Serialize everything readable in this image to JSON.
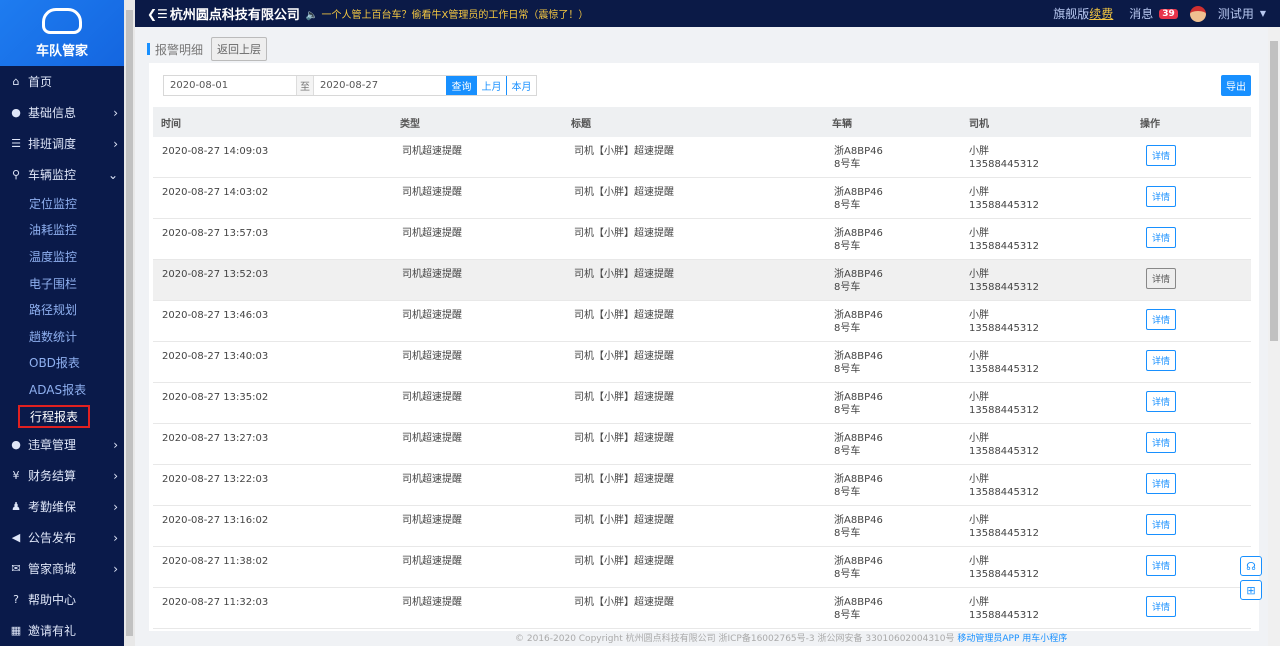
{
  "sidebar": {
    "brand": "车队管家",
    "items": [
      {
        "label": "首页",
        "icon": "home-icon",
        "glyph": "⌂"
      },
      {
        "label": "基础信息",
        "icon": "info-icon",
        "glyph": "●",
        "chev": true
      },
      {
        "label": "排班调度",
        "icon": "sliders-icon",
        "glyph": "☰",
        "chev": true
      },
      {
        "label": "车辆监控",
        "icon": "location-icon",
        "glyph": "⚲",
        "chev": true,
        "open": true
      }
    ],
    "sub": [
      "定位监控",
      "油耗监控",
      "温度监控",
      "电子围栏",
      "路径规划",
      "趟数统计",
      "OBD报表",
      "ADAS报表",
      "行程报表"
    ],
    "active_sub": "行程报表",
    "items2": [
      {
        "label": "违章管理",
        "icon": "violation-icon",
        "glyph": "●",
        "chev": true
      },
      {
        "label": "财务结算",
        "icon": "finance-icon",
        "glyph": "¥",
        "chev": true
      },
      {
        "label": "考勤维保",
        "icon": "attendance-icon",
        "glyph": "♟",
        "chev": true
      },
      {
        "label": "公告发布",
        "icon": "announce-icon",
        "glyph": "◀",
        "chev": true
      },
      {
        "label": "管家商城",
        "icon": "mall-icon",
        "glyph": "✉",
        "chev": true
      },
      {
        "label": "帮助中心",
        "icon": "help-icon",
        "glyph": "?"
      },
      {
        "label": "邀请有礼",
        "icon": "gift-icon",
        "glyph": "▦"
      }
    ]
  },
  "header": {
    "company": "杭州圆点科技有限公司",
    "notice": "一个人管上百台车？偷看牛X管理员的工作日常（震惊了！）",
    "edition": "旗舰版",
    "renew": "续费",
    "messages": "消息",
    "msg_count": "39",
    "user": "测试用"
  },
  "page": {
    "title": "报警明细",
    "back": "返回上层"
  },
  "filter": {
    "start": "2020-08-01",
    "to": "至",
    "end": "2020-08-27",
    "query": "查询",
    "last_month": "上月",
    "this_month": "本月",
    "export": "导出"
  },
  "table": {
    "columns": [
      "时间",
      "类型",
      "标题",
      "车辆",
      "司机",
      "操作"
    ],
    "rows": [
      [
        "2020-08-27 14:09:03",
        "司机超速提醒",
        "司机【小胖】超速提醒",
        "浙A8BP46",
        "8号车",
        "小胖",
        "13588445312",
        "详情"
      ],
      [
        "2020-08-27 14:03:02",
        "司机超速提醒",
        "司机【小胖】超速提醒",
        "浙A8BP46",
        "8号车",
        "小胖",
        "13588445312",
        "详情"
      ],
      [
        "2020-08-27 13:57:03",
        "司机超速提醒",
        "司机【小胖】超速提醒",
        "浙A8BP46",
        "8号车",
        "小胖",
        "13588445312",
        "详情"
      ],
      [
        "2020-08-27 13:52:03",
        "司机超速提醒",
        "司机【小胖】超速提醒",
        "浙A8BP46",
        "8号车",
        "小胖",
        "13588445312",
        "详情"
      ],
      [
        "2020-08-27 13:46:03",
        "司机超速提醒",
        "司机【小胖】超速提醒",
        "浙A8BP46",
        "8号车",
        "小胖",
        "13588445312",
        "详情"
      ],
      [
        "2020-08-27 13:40:03",
        "司机超速提醒",
        "司机【小胖】超速提醒",
        "浙A8BP46",
        "8号车",
        "小胖",
        "13588445312",
        "详情"
      ],
      [
        "2020-08-27 13:35:02",
        "司机超速提醒",
        "司机【小胖】超速提醒",
        "浙A8BP46",
        "8号车",
        "小胖",
        "13588445312",
        "详情"
      ],
      [
        "2020-08-27 13:27:03",
        "司机超速提醒",
        "司机【小胖】超速提醒",
        "浙A8BP46",
        "8号车",
        "小胖",
        "13588445312",
        "详情"
      ],
      [
        "2020-08-27 13:22:03",
        "司机超速提醒",
        "司机【小胖】超速提醒",
        "浙A8BP46",
        "8号车",
        "小胖",
        "13588445312",
        "详情"
      ],
      [
        "2020-08-27 13:16:02",
        "司机超速提醒",
        "司机【小胖】超速提醒",
        "浙A8BP46",
        "8号车",
        "小胖",
        "13588445312",
        "详情"
      ],
      [
        "2020-08-27 11:38:02",
        "司机超速提醒",
        "司机【小胖】超速提醒",
        "浙A8BP46",
        "8号车",
        "小胖",
        "13588445312",
        "详情"
      ],
      [
        "2020-08-27 11:32:03",
        "司机超速提醒",
        "司机【小胖】超速提醒",
        "浙A8BP46",
        "8号车",
        "小胖",
        "13588445312",
        "详情"
      ]
    ]
  },
  "footer": {
    "copyright": "© 2016-2020 Copyright 杭州圆点科技有限公司 浙ICP备16002765号-3 浙公网安备 33010602004310号",
    "app": "移动管理员APP",
    "mini": "用车小程序"
  },
  "colors": {
    "accent": "#1890ff",
    "sidebar": "#0a1a4a",
    "header": "#0b1a47",
    "badge": "#e8344a"
  }
}
